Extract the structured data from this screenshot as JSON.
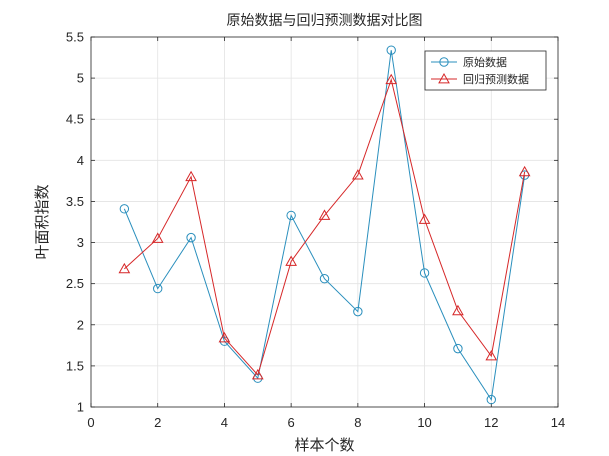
{
  "chart_data": {
    "type": "line",
    "title": "原始数据与回归预测数据对比图",
    "xlabel": "样本个数",
    "ylabel": "叶面积指数",
    "xlim": [
      0,
      14
    ],
    "ylim": [
      1,
      5.5
    ],
    "xticks": [
      "0",
      "2",
      "4",
      "6",
      "8",
      "10",
      "12",
      "14"
    ],
    "yticks": [
      "1",
      "1.5",
      "2",
      "2.5",
      "3",
      "3.5",
      "4",
      "4.5",
      "5",
      "5.5"
    ],
    "grid": true,
    "legend_position": "top-right",
    "x": [
      1,
      2,
      3,
      4,
      5,
      6,
      7,
      8,
      9,
      10,
      11,
      12,
      13
    ],
    "series": [
      {
        "name": "原始数据",
        "marker": "circle",
        "color": "#2a8fbd",
        "values": [
          3.41,
          2.44,
          3.06,
          1.8,
          1.35,
          3.33,
          2.56,
          2.16,
          5.34,
          2.63,
          1.71,
          1.09,
          3.82
        ]
      },
      {
        "name": "回归预测数据",
        "marker": "triangle",
        "color": "#d62728",
        "values": [
          2.68,
          3.05,
          3.8,
          1.84,
          1.39,
          2.77,
          3.33,
          3.82,
          4.98,
          3.28,
          2.17,
          1.62,
          3.86
        ]
      }
    ]
  }
}
